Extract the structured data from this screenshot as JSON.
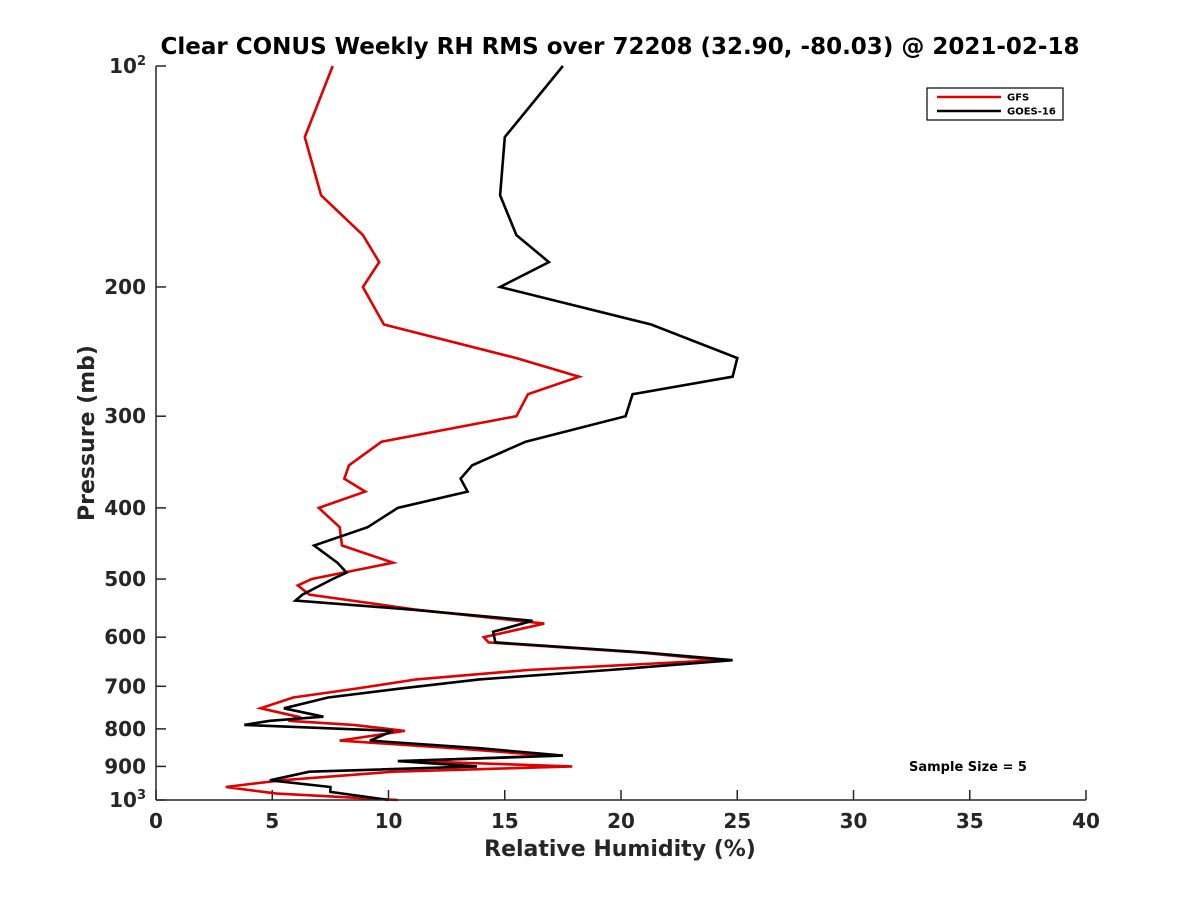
{
  "chart_data": {
    "type": "line",
    "title": "Clear CONUS Weekly RH RMS over 72208 (32.90, -80.03) @ 2021-02-18",
    "xlabel": "Relative Humidity (%)",
    "ylabel": "Pressure (mb)",
    "xlim": [
      0,
      40
    ],
    "ylim": [
      100,
      1000
    ],
    "yscale": "log",
    "y_reversed": true,
    "x_ticks": [
      0,
      5,
      10,
      15,
      20,
      25,
      30,
      35,
      40
    ],
    "y_ticks": [
      {
        "value": 100,
        "label": "10",
        "sup": "2"
      },
      {
        "value": 200,
        "label": "200"
      },
      {
        "value": 300,
        "label": "300"
      },
      {
        "value": 400,
        "label": "400"
      },
      {
        "value": 500,
        "label": "500"
      },
      {
        "value": 600,
        "label": "600"
      },
      {
        "value": 700,
        "label": "700"
      },
      {
        "value": 800,
        "label": "800"
      },
      {
        "value": 900,
        "label": "900"
      },
      {
        "value": 1000,
        "label": "10",
        "sup": "3"
      }
    ],
    "legend_position": "top-right",
    "grid": false,
    "annotation": "Sample Size = 5",
    "series": [
      {
        "name": "GFS",
        "color": "#e00000",
        "points": [
          [
            7.6,
            100
          ],
          [
            6.4,
            125
          ],
          [
            7.1,
            150
          ],
          [
            8.9,
            170
          ],
          [
            9.6,
            185
          ],
          [
            8.9,
            200
          ],
          [
            9.8,
            225
          ],
          [
            15.5,
            250
          ],
          [
            18.2,
            265
          ],
          [
            16.0,
            280
          ],
          [
            15.5,
            300
          ],
          [
            9.7,
            325
          ],
          [
            8.3,
            350
          ],
          [
            8.1,
            365
          ],
          [
            9.0,
            380
          ],
          [
            7.0,
            400
          ],
          [
            7.9,
            425
          ],
          [
            8.0,
            450
          ],
          [
            10.2,
            475
          ],
          [
            6.7,
            500
          ],
          [
            6.1,
            510
          ],
          [
            6.6,
            525
          ],
          [
            11.1,
            550
          ],
          [
            16.7,
            575
          ],
          [
            14.1,
            600
          ],
          [
            14.3,
            610
          ],
          [
            20.9,
            630
          ],
          [
            24.2,
            645
          ],
          [
            16.0,
            665
          ],
          [
            11.2,
            685
          ],
          [
            8.6,
            705
          ],
          [
            5.9,
            725
          ],
          [
            4.5,
            750
          ],
          [
            6.1,
            770
          ],
          [
            5.7,
            780
          ],
          [
            8.5,
            790
          ],
          [
            10.7,
            805
          ],
          [
            7.9,
            830
          ],
          [
            12.8,
            850
          ],
          [
            16.9,
            870
          ],
          [
            10.9,
            885
          ],
          [
            17.9,
            900
          ],
          [
            10.2,
            915
          ],
          [
            5.4,
            940
          ],
          [
            3.0,
            960
          ],
          [
            5.2,
            980
          ],
          [
            10.4,
            1000
          ]
        ]
      },
      {
        "name": "GOES-16",
        "color": "#000000",
        "points": [
          [
            17.5,
            100
          ],
          [
            15.0,
            125
          ],
          [
            14.8,
            150
          ],
          [
            15.5,
            170
          ],
          [
            16.9,
            185
          ],
          [
            14.8,
            200
          ],
          [
            21.3,
            225
          ],
          [
            25.0,
            250
          ],
          [
            24.8,
            265
          ],
          [
            20.5,
            280
          ],
          [
            20.2,
            300
          ],
          [
            15.9,
            325
          ],
          [
            13.6,
            350
          ],
          [
            13.1,
            365
          ],
          [
            13.4,
            380
          ],
          [
            10.4,
            400
          ],
          [
            9.1,
            425
          ],
          [
            6.8,
            450
          ],
          [
            7.8,
            475
          ],
          [
            8.2,
            490
          ],
          [
            7.6,
            500
          ],
          [
            6.3,
            525
          ],
          [
            6.0,
            535
          ],
          [
            10.9,
            550
          ],
          [
            16.2,
            570
          ],
          [
            14.5,
            590
          ],
          [
            14.6,
            610
          ],
          [
            21.1,
            630
          ],
          [
            24.8,
            645
          ],
          [
            19.5,
            665
          ],
          [
            13.9,
            685
          ],
          [
            10.5,
            705
          ],
          [
            7.4,
            725
          ],
          [
            5.5,
            750
          ],
          [
            7.2,
            770
          ],
          [
            4.9,
            780
          ],
          [
            3.8,
            790
          ],
          [
            10.2,
            805
          ],
          [
            9.2,
            830
          ],
          [
            13.9,
            850
          ],
          [
            17.5,
            870
          ],
          [
            10.4,
            885
          ],
          [
            13.8,
            900
          ],
          [
            6.6,
            915
          ],
          [
            4.9,
            940
          ],
          [
            7.5,
            960
          ],
          [
            7.5,
            975
          ],
          [
            10.0,
            1000
          ]
        ]
      }
    ]
  }
}
